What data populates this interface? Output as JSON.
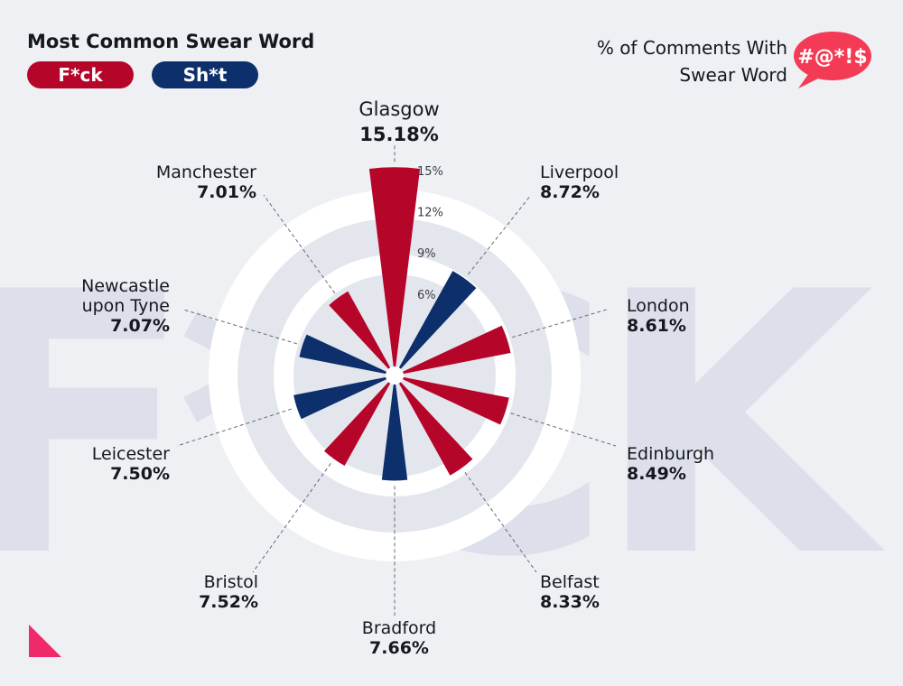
{
  "legend": {
    "title": "Most Common Swear Word",
    "items": [
      {
        "label": "F*ck",
        "color": "#b5062a"
      },
      {
        "label": "Sh*t",
        "color": "#0d2f6c"
      }
    ]
  },
  "metric": {
    "line1": "% of Comments With",
    "line2": "Swear Word",
    "icon_text": "#@*!$",
    "icon_color": "#f43b56"
  },
  "watermark": "F*CK",
  "chart_data": {
    "type": "polar-bar",
    "unit": "%",
    "radial_ticks": [
      "6%",
      "9%",
      "12%",
      "15%"
    ],
    "categories": [
      "Glasgow",
      "Liverpool",
      "London",
      "Edinburgh",
      "Belfast",
      "Bradford",
      "Bristol",
      "Leicester",
      "Newcastle upon Tyne",
      "Manchester"
    ],
    "series": [
      {
        "name": "F*ck",
        "color": "#b5062a"
      },
      {
        "name": "Sh*t",
        "color": "#0d2f6c"
      }
    ],
    "bars": [
      {
        "city": "Glasgow",
        "value": 15.18,
        "label": "15.18%",
        "word": "F*ck",
        "angle": 0
      },
      {
        "city": "Liverpool",
        "value": 8.72,
        "label": "8.72%",
        "word": "Sh*t",
        "angle": 36
      },
      {
        "city": "London",
        "value": 8.61,
        "label": "8.61%",
        "word": "F*ck",
        "angle": 72
      },
      {
        "city": "Edinburgh",
        "value": 8.49,
        "label": "8.49%",
        "word": "F*ck",
        "angle": 108
      },
      {
        "city": "Belfast",
        "value": 8.33,
        "label": "8.33%",
        "word": "F*ck",
        "angle": 144
      },
      {
        "city": "Bradford",
        "value": 7.66,
        "label": "7.66%",
        "word": "Sh*t",
        "angle": 180
      },
      {
        "city": "Bristol",
        "value": 7.52,
        "label": "7.52%",
        "word": "F*ck",
        "angle": 216
      },
      {
        "city": "Leicester",
        "value": 7.5,
        "label": "7.50%",
        "word": "Sh*t",
        "angle": 252
      },
      {
        "city": "Newcastle upon Tyne",
        "value": 7.07,
        "label": "7.07%",
        "word": "Sh*t",
        "angle": 288
      },
      {
        "city": "Manchester",
        "value": 7.01,
        "label": "7.01%",
        "word": "F*ck",
        "angle": 324
      }
    ]
  }
}
